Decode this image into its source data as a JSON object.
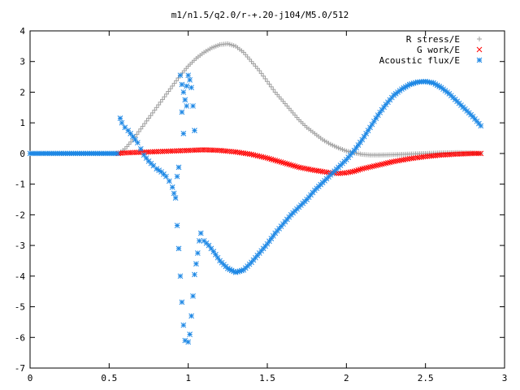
{
  "chart_data": {
    "type": "scatter",
    "title": "m1/n1.5/q2.0/r-+.20-j104/M5.0/512",
    "xlabel": "",
    "ylabel": "",
    "xlim": [
      0,
      3
    ],
    "ylim": [
      -7,
      4
    ],
    "xticks": [
      "0",
      "0.5",
      "1",
      "1.5",
      "2",
      "2.5",
      "3"
    ],
    "yticks": [
      "-7",
      "-6",
      "-5",
      "-4",
      "-3",
      "-2",
      "-1",
      "0",
      "1",
      "2",
      "3",
      "4"
    ],
    "grid": false,
    "legend_position": "top-right",
    "series": [
      {
        "name": "R stress/E",
        "marker": "+",
        "color": "#a0a0a0",
        "points": [
          [
            0.0,
            0.0
          ],
          [
            0.1,
            0.0
          ],
          [
            0.2,
            0.0
          ],
          [
            0.3,
            0.0
          ],
          [
            0.4,
            0.0
          ],
          [
            0.5,
            0.0
          ],
          [
            0.56,
            0.0
          ],
          [
            0.6,
            0.15
          ],
          [
            0.65,
            0.45
          ],
          [
            0.7,
            0.8
          ],
          [
            0.75,
            1.15
          ],
          [
            0.8,
            1.5
          ],
          [
            0.85,
            1.85
          ],
          [
            0.9,
            2.2
          ],
          [
            0.95,
            2.55
          ],
          [
            1.0,
            2.85
          ],
          [
            1.05,
            3.1
          ],
          [
            1.1,
            3.3
          ],
          [
            1.15,
            3.45
          ],
          [
            1.2,
            3.55
          ],
          [
            1.25,
            3.58
          ],
          [
            1.3,
            3.5
          ],
          [
            1.35,
            3.3
          ],
          [
            1.4,
            3.0
          ],
          [
            1.45,
            2.7
          ],
          [
            1.5,
            2.35
          ],
          [
            1.55,
            2.0
          ],
          [
            1.6,
            1.7
          ],
          [
            1.65,
            1.4
          ],
          [
            1.7,
            1.1
          ],
          [
            1.75,
            0.85
          ],
          [
            1.8,
            0.65
          ],
          [
            1.85,
            0.45
          ],
          [
            1.9,
            0.3
          ],
          [
            1.95,
            0.18
          ],
          [
            2.0,
            0.08
          ],
          [
            2.05,
            0.02
          ],
          [
            2.1,
            -0.03
          ],
          [
            2.15,
            -0.05
          ],
          [
            2.2,
            -0.05
          ],
          [
            2.3,
            -0.04
          ],
          [
            2.4,
            -0.02
          ],
          [
            2.5,
            0.0
          ],
          [
            2.6,
            0.02
          ],
          [
            2.7,
            0.03
          ],
          [
            2.8,
            0.02
          ],
          [
            2.85,
            0.0
          ]
        ]
      },
      {
        "name": "G work/E",
        "marker": "x",
        "color": "#ff0000",
        "points": [
          [
            0.56,
            0.0
          ],
          [
            0.6,
            0.02
          ],
          [
            0.7,
            0.04
          ],
          [
            0.8,
            0.06
          ],
          [
            0.9,
            0.08
          ],
          [
            1.0,
            0.1
          ],
          [
            1.1,
            0.12
          ],
          [
            1.2,
            0.1
          ],
          [
            1.3,
            0.05
          ],
          [
            1.4,
            -0.03
          ],
          [
            1.5,
            -0.15
          ],
          [
            1.6,
            -0.3
          ],
          [
            1.7,
            -0.45
          ],
          [
            1.8,
            -0.55
          ],
          [
            1.9,
            -0.63
          ],
          [
            1.95,
            -0.65
          ],
          [
            2.0,
            -0.63
          ],
          [
            2.05,
            -0.58
          ],
          [
            2.1,
            -0.5
          ],
          [
            2.2,
            -0.38
          ],
          [
            2.3,
            -0.26
          ],
          [
            2.4,
            -0.17
          ],
          [
            2.5,
            -0.1
          ],
          [
            2.6,
            -0.05
          ],
          [
            2.7,
            -0.02
          ],
          [
            2.8,
            0.0
          ],
          [
            2.85,
            0.0
          ]
        ]
      },
      {
        "name": "Acoustic flux/E",
        "marker": "*",
        "color": "#1e88e5",
        "points": [
          [
            0.0,
            0.0
          ],
          [
            0.1,
            0.0
          ],
          [
            0.2,
            0.0
          ],
          [
            0.3,
            0.0
          ],
          [
            0.4,
            0.0
          ],
          [
            0.5,
            0.0
          ],
          [
            0.55,
            0.0
          ],
          [
            0.57,
            1.15
          ],
          [
            0.58,
            1.0
          ],
          [
            0.6,
            0.85
          ],
          [
            0.62,
            0.75
          ],
          [
            0.65,
            0.55
          ],
          [
            0.68,
            0.35
          ],
          [
            0.7,
            0.15
          ],
          [
            0.72,
            -0.05
          ],
          [
            0.75,
            -0.25
          ],
          [
            0.78,
            -0.4
          ],
          [
            0.8,
            -0.5
          ],
          [
            0.83,
            -0.6
          ],
          [
            0.86,
            -0.75
          ],
          [
            0.88,
            -0.9
          ],
          [
            0.9,
            -1.1
          ],
          [
            0.91,
            -1.3
          ],
          [
            0.92,
            -1.45
          ],
          [
            0.93,
            -0.75
          ],
          [
            0.94,
            -0.45
          ],
          [
            0.93,
            -2.35
          ],
          [
            0.94,
            -3.1
          ],
          [
            0.95,
            -4.0
          ],
          [
            0.96,
            -4.85
          ],
          [
            0.97,
            -5.6
          ],
          [
            0.98,
            -6.1
          ],
          [
            1.0,
            -6.15
          ],
          [
            1.01,
            -5.9
          ],
          [
            1.02,
            -5.3
          ],
          [
            1.03,
            -4.65
          ],
          [
            1.04,
            -3.95
          ],
          [
            1.05,
            -3.6
          ],
          [
            1.06,
            -3.25
          ],
          [
            1.07,
            -2.85
          ],
          [
            1.08,
            -2.6
          ],
          [
            1.1,
            -2.85
          ],
          [
            1.13,
            -3.0
          ],
          [
            1.16,
            -3.2
          ],
          [
            1.2,
            -3.5
          ],
          [
            1.25,
            -3.75
          ],
          [
            1.3,
            -3.88
          ],
          [
            1.35,
            -3.8
          ],
          [
            1.4,
            -3.55
          ],
          [
            1.45,
            -3.25
          ],
          [
            1.5,
            -2.95
          ],
          [
            1.55,
            -2.6
          ],
          [
            1.6,
            -2.3
          ],
          [
            1.65,
            -2.0
          ],
          [
            1.7,
            -1.75
          ],
          [
            1.75,
            -1.5
          ],
          [
            1.8,
            -1.2
          ],
          [
            1.85,
            -0.95
          ],
          [
            1.9,
            -0.7
          ],
          [
            1.95,
            -0.45
          ],
          [
            2.0,
            -0.2
          ],
          [
            2.05,
            0.1
          ],
          [
            2.1,
            0.45
          ],
          [
            2.15,
            0.85
          ],
          [
            2.2,
            1.25
          ],
          [
            2.25,
            1.6
          ],
          [
            2.3,
            1.9
          ],
          [
            2.35,
            2.1
          ],
          [
            2.4,
            2.25
          ],
          [
            2.45,
            2.33
          ],
          [
            2.5,
            2.35
          ],
          [
            2.55,
            2.3
          ],
          [
            2.6,
            2.15
          ],
          [
            2.65,
            1.95
          ],
          [
            2.7,
            1.7
          ],
          [
            2.75,
            1.45
          ],
          [
            2.8,
            1.2
          ],
          [
            2.85,
            0.9
          ],
          [
            0.95,
            2.55
          ],
          [
            0.96,
            2.25
          ],
          [
            0.97,
            2.0
          ],
          [
            0.98,
            1.75
          ],
          [
            0.99,
            1.55
          ],
          [
            1.0,
            2.55
          ],
          [
            1.01,
            2.4
          ],
          [
            1.02,
            2.15
          ],
          [
            1.03,
            1.55
          ],
          [
            1.04,
            0.75
          ],
          [
            0.97,
            0.65
          ],
          [
            0.96,
            1.35
          ],
          [
            0.99,
            2.2
          ]
        ]
      }
    ]
  }
}
